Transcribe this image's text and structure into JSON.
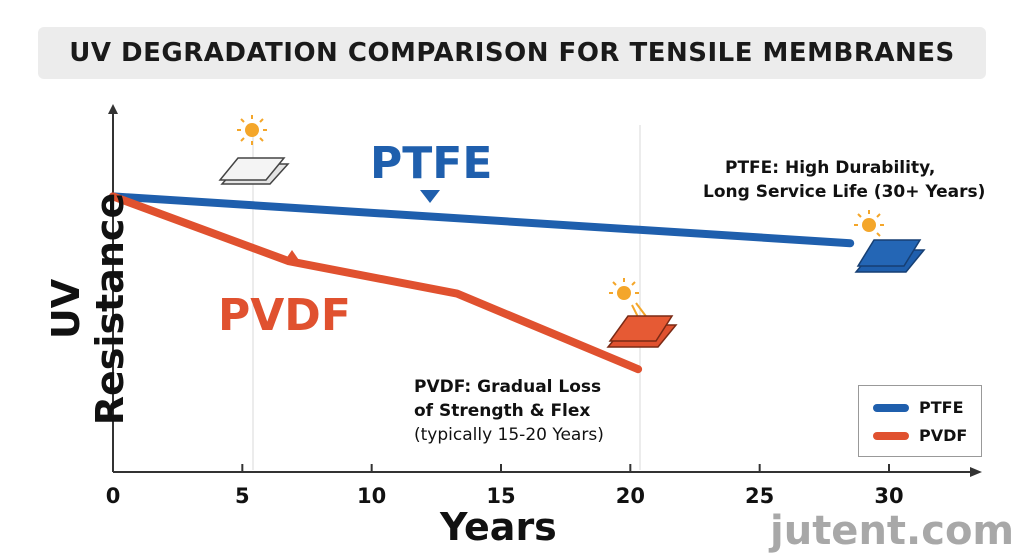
{
  "chart_data": {
    "type": "line",
    "title": "UV DEGRADATION COMPARISON FOR TENSILE MEMBRANES",
    "xlabel": "Years",
    "ylabel": "UV Resistance",
    "xlim": [
      0,
      33
    ],
    "ylim": [
      0,
      100
    ],
    "x_ticks": [
      "0",
      "5",
      "10",
      "15",
      "20",
      "25",
      "30"
    ],
    "grid": "vertical lines at 5 and 20 only",
    "legend_position": "bottom-right",
    "series": [
      {
        "name": "PTFE",
        "color": "#1f5fad",
        "x": [
          0,
          28.5
        ],
        "y": [
          76,
          63
        ]
      },
      {
        "name": "PVDF",
        "color": "#e0512f",
        "x": [
          0,
          6.8,
          13.3,
          20.3
        ],
        "y": [
          76,
          58,
          49,
          28
        ]
      }
    ],
    "annotations": {
      "ptfe_big_label": "PTFE",
      "pvdf_big_label": "PVDF",
      "ptfe_note_line1": "PTFE: High Durability,",
      "ptfe_note_line2": "Long Service Life (30+ Years)",
      "pvdf_note_line1": "PVDF: Gradual Loss",
      "pvdf_note_line2": "of Strength & Flex",
      "pvdf_note_line3": "(typically 15-20 Years)"
    },
    "icons": [
      "sun-icon",
      "membrane-sheet-icon"
    ]
  },
  "watermark": "jutent.com"
}
